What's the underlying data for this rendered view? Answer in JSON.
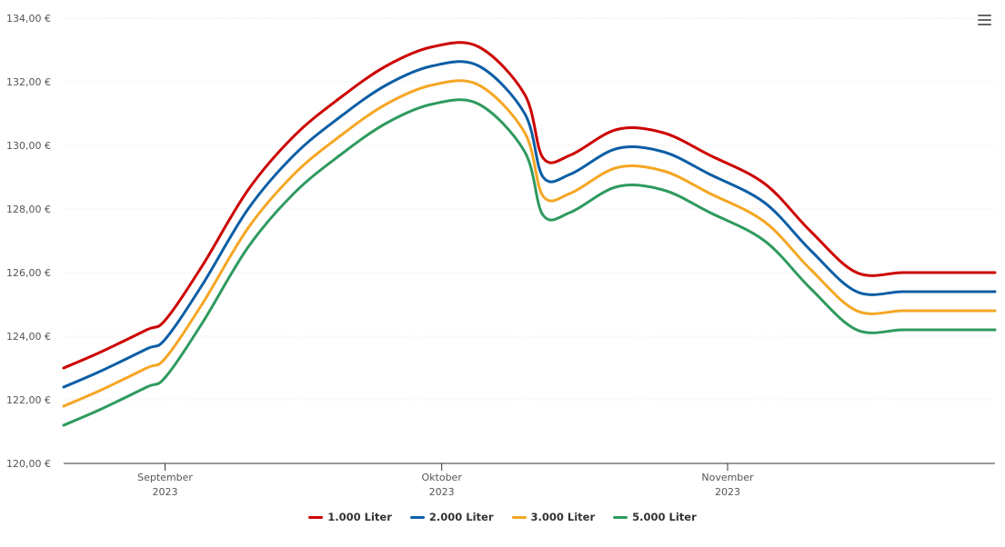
{
  "menu": {
    "icon": "hamburger-menu-icon"
  },
  "chart_data": {
    "type": "line",
    "title": "",
    "xlabel": "",
    "ylabel": "",
    "ylim": [
      120,
      134
    ],
    "y_ticks": [
      120,
      122,
      124,
      126,
      128,
      130,
      132,
      134
    ],
    "y_tick_labels": [
      "120,00 €",
      "122,00 €",
      "124,00 €",
      "126,00 €",
      "128,00 €",
      "130,00 €",
      "132,00 €",
      "134,00 €"
    ],
    "x_domain": [
      "2023-08-21",
      "2023-11-30"
    ],
    "x_ticks": [
      {
        "date": "2023-09-01",
        "month": "September",
        "year": "2023"
      },
      {
        "date": "2023-10-01",
        "month": "Oktober",
        "year": "2023"
      },
      {
        "date": "2023-11-01",
        "month": "November",
        "year": "2023"
      }
    ],
    "grid": "horizontal",
    "legend_position": "bottom-center",
    "series": [
      {
        "name": "1.000 Liter",
        "color": "#cc0000",
        "points": [
          [
            "2023-08-21",
            123.0
          ],
          [
            "2023-08-25",
            123.5
          ],
          [
            "2023-08-30",
            124.2
          ],
          [
            "2023-09-01",
            124.5
          ],
          [
            "2023-09-05",
            126.2
          ],
          [
            "2023-09-10",
            128.6
          ],
          [
            "2023-09-15",
            130.3
          ],
          [
            "2023-09-20",
            131.5
          ],
          [
            "2023-09-25",
            132.5
          ],
          [
            "2023-09-30",
            133.1
          ],
          [
            "2023-10-05",
            133.1
          ],
          [
            "2023-10-10",
            131.6
          ],
          [
            "2023-10-12",
            129.6
          ],
          [
            "2023-10-15",
            129.7
          ],
          [
            "2023-10-20",
            130.5
          ],
          [
            "2023-10-25",
            130.4
          ],
          [
            "2023-10-30",
            129.7
          ],
          [
            "2023-11-05",
            128.8
          ],
          [
            "2023-11-10",
            127.3
          ],
          [
            "2023-11-15",
            126.0
          ],
          [
            "2023-11-20",
            126.0
          ],
          [
            "2023-11-25",
            126.0
          ],
          [
            "2023-11-30",
            126.0
          ]
        ]
      },
      {
        "name": "2.000 Liter",
        "color": "#0c5ea5",
        "points": [
          [
            "2023-08-21",
            122.4
          ],
          [
            "2023-08-25",
            122.9
          ],
          [
            "2023-08-30",
            123.6
          ],
          [
            "2023-09-01",
            123.9
          ],
          [
            "2023-09-05",
            125.6
          ],
          [
            "2023-09-10",
            128.0
          ],
          [
            "2023-09-15",
            129.7
          ],
          [
            "2023-09-20",
            130.9
          ],
          [
            "2023-09-25",
            131.9
          ],
          [
            "2023-09-30",
            132.5
          ],
          [
            "2023-10-05",
            132.5
          ],
          [
            "2023-10-10",
            131.0
          ],
          [
            "2023-10-12",
            129.0
          ],
          [
            "2023-10-15",
            129.1
          ],
          [
            "2023-10-20",
            129.9
          ],
          [
            "2023-10-25",
            129.8
          ],
          [
            "2023-10-30",
            129.1
          ],
          [
            "2023-11-05",
            128.2
          ],
          [
            "2023-11-10",
            126.7
          ],
          [
            "2023-11-15",
            125.4
          ],
          [
            "2023-11-20",
            125.4
          ],
          [
            "2023-11-25",
            125.4
          ],
          [
            "2023-11-30",
            125.4
          ]
        ]
      },
      {
        "name": "3.000 Liter",
        "color": "#f5a623",
        "points": [
          [
            "2023-08-21",
            121.8
          ],
          [
            "2023-08-25",
            122.3
          ],
          [
            "2023-08-30",
            123.0
          ],
          [
            "2023-09-01",
            123.3
          ],
          [
            "2023-09-05",
            125.0
          ],
          [
            "2023-09-10",
            127.4
          ],
          [
            "2023-09-15",
            129.1
          ],
          [
            "2023-09-20",
            130.3
          ],
          [
            "2023-09-25",
            131.3
          ],
          [
            "2023-09-30",
            131.9
          ],
          [
            "2023-10-05",
            131.9
          ],
          [
            "2023-10-10",
            130.4
          ],
          [
            "2023-10-12",
            128.4
          ],
          [
            "2023-10-15",
            128.5
          ],
          [
            "2023-10-20",
            129.3
          ],
          [
            "2023-10-25",
            129.2
          ],
          [
            "2023-10-30",
            128.5
          ],
          [
            "2023-11-05",
            127.6
          ],
          [
            "2023-11-10",
            126.1
          ],
          [
            "2023-11-15",
            124.8
          ],
          [
            "2023-11-20",
            124.8
          ],
          [
            "2023-11-25",
            124.8
          ],
          [
            "2023-11-30",
            124.8
          ]
        ]
      },
      {
        "name": "5.000 Liter",
        "color": "#2e9a5e",
        "points": [
          [
            "2023-08-21",
            121.2
          ],
          [
            "2023-08-25",
            121.7
          ],
          [
            "2023-08-30",
            122.4
          ],
          [
            "2023-09-01",
            122.7
          ],
          [
            "2023-09-05",
            124.4
          ],
          [
            "2023-09-10",
            126.8
          ],
          [
            "2023-09-15",
            128.5
          ],
          [
            "2023-09-20",
            129.7
          ],
          [
            "2023-09-25",
            130.7
          ],
          [
            "2023-09-30",
            131.3
          ],
          [
            "2023-10-05",
            131.3
          ],
          [
            "2023-10-10",
            129.8
          ],
          [
            "2023-10-12",
            127.8
          ],
          [
            "2023-10-15",
            127.9
          ],
          [
            "2023-10-20",
            128.7
          ],
          [
            "2023-10-25",
            128.6
          ],
          [
            "2023-10-30",
            127.9
          ],
          [
            "2023-11-05",
            127.0
          ],
          [
            "2023-11-10",
            125.5
          ],
          [
            "2023-11-15",
            124.2
          ],
          [
            "2023-11-20",
            124.2
          ],
          [
            "2023-11-25",
            124.2
          ],
          [
            "2023-11-30",
            124.2
          ]
        ]
      }
    ]
  }
}
